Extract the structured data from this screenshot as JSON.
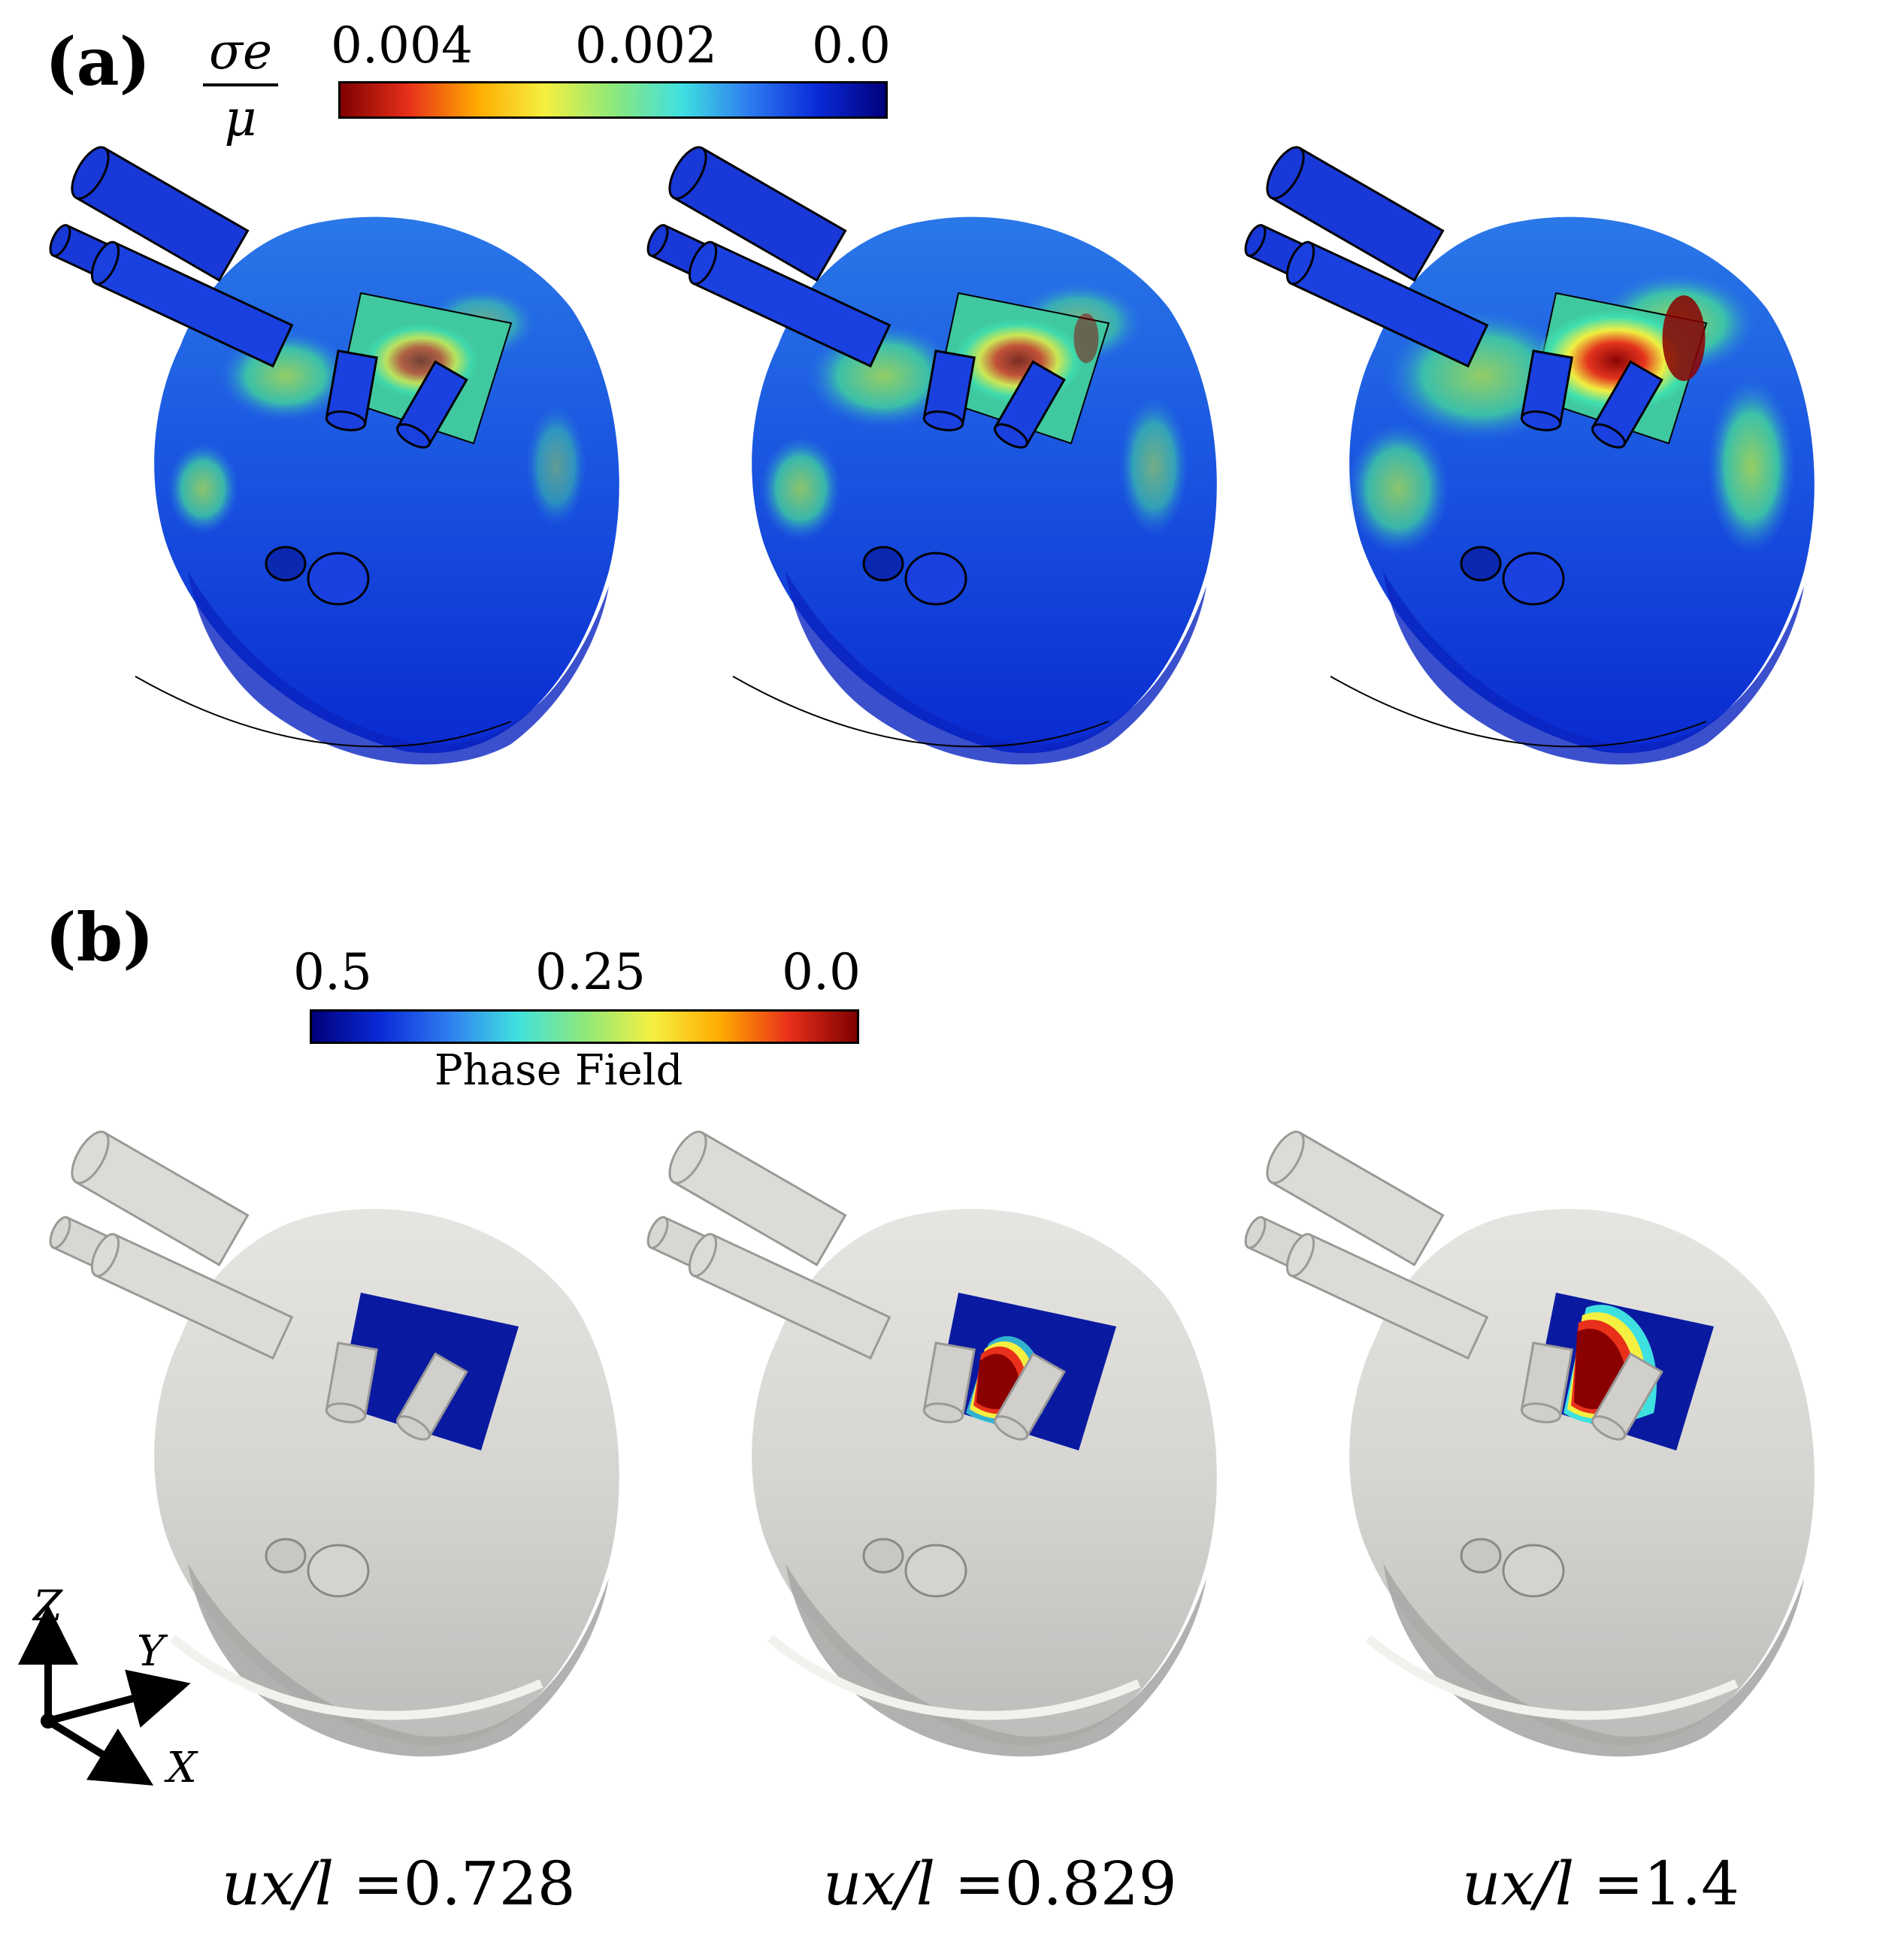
{
  "panel_a": {
    "label": "(a)",
    "colorbar": {
      "title_num": "σe",
      "title_den": "μ",
      "ticks": [
        "0.004",
        "0.002",
        "0.0"
      ],
      "colors": [
        "#7f0000",
        "#e8301a",
        "#ffaa00",
        "#f5f040",
        "#8ee87a",
        "#3fe0e0",
        "#2e7cf0",
        "#0a2ad8",
        "#00007a"
      ]
    },
    "hearts": [
      {
        "name": "stress-heart-1",
        "hotspot_level": 0.35
      },
      {
        "name": "stress-heart-2",
        "hotspot_level": 0.55
      },
      {
        "name": "stress-heart-3",
        "hotspot_level": 0.95
      }
    ]
  },
  "panel_b": {
    "label": "(b)",
    "colorbar": {
      "ticks": [
        "0.5",
        "0.25",
        "0.0"
      ],
      "title": "Phase Field",
      "colors": [
        "#00007a",
        "#0a2ad8",
        "#2e7cf0",
        "#3fe0e0",
        "#8ee87a",
        "#f5f040",
        "#ffaa00",
        "#e8301a",
        "#7f0000"
      ]
    },
    "hearts": [
      {
        "name": "phase-heart-1",
        "crack_level": 0.0
      },
      {
        "name": "phase-heart-2",
        "crack_level": 0.4
      },
      {
        "name": "phase-heart-3",
        "crack_level": 1.0
      }
    ],
    "axes": {
      "z": "Z",
      "y": "Y",
      "x": "X"
    }
  },
  "captions": [
    {
      "lhs": "ux/l =",
      "value": "0.728"
    },
    {
      "lhs": "ux/l =",
      "value": "0.829"
    },
    {
      "lhs": "ux/l =",
      "value": "1.4"
    }
  ]
}
